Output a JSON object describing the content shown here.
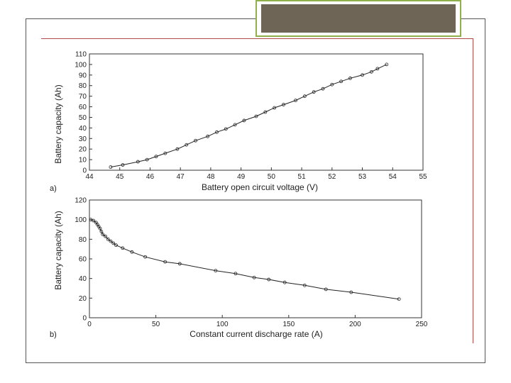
{
  "chart_data": [
    {
      "type": "line",
      "panel_label": "a)",
      "xlabel": "Battery open circuit voltage (V)",
      "ylabel": "Battery capacity (Ah)",
      "xlim": [
        44,
        55
      ],
      "ylim": [
        0,
        110
      ],
      "xticks": [
        44,
        45,
        46,
        47,
        48,
        49,
        50,
        51,
        52,
        53,
        54,
        55
      ],
      "yticks": [
        0,
        10,
        20,
        30,
        40,
        50,
        60,
        70,
        80,
        90,
        100,
        110
      ],
      "grid": false,
      "series": [
        {
          "x": [
            44.7,
            45.1,
            45.6,
            45.9,
            46.2,
            46.5,
            46.9,
            47.2,
            47.5,
            47.9,
            48.2,
            48.5,
            48.8,
            49.1,
            49.5,
            49.8,
            50.1,
            50.4,
            50.8,
            51.1,
            51.4,
            51.7,
            52.0,
            52.3,
            52.6,
            53.0,
            53.3,
            53.5,
            53.8
          ],
          "y": [
            3,
            5,
            8,
            10,
            13,
            16,
            20,
            24,
            28,
            32,
            36,
            39,
            43,
            47,
            51,
            55,
            59,
            62,
            66,
            70,
            74,
            77,
            81,
            84,
            87,
            90,
            93,
            96,
            100
          ]
        }
      ]
    },
    {
      "type": "line",
      "panel_label": "b)",
      "xlabel": "Constant current discharge rate (A)",
      "ylabel": "Battery capacity (Ah)",
      "xlim": [
        0,
        250
      ],
      "ylim": [
        0,
        120
      ],
      "xticks": [
        0,
        50,
        100,
        150,
        200,
        250
      ],
      "yticks": [
        0,
        20,
        40,
        60,
        80,
        100,
        120
      ],
      "grid": false,
      "series": [
        {
          "x": [
            1,
            3,
            5,
            6,
            7,
            8,
            9,
            10,
            12,
            14,
            16,
            18,
            20,
            25,
            32,
            42,
            57,
            68,
            95,
            110,
            124,
            135,
            147,
            162,
            178,
            197,
            233
          ],
          "y": [
            100,
            99,
            97,
            95,
            93,
            91,
            88,
            85,
            83,
            80,
            78,
            76,
            74,
            71,
            67,
            62,
            57,
            55,
            48,
            45,
            41,
            39,
            36,
            33,
            29,
            26,
            19
          ]
        }
      ]
    }
  ]
}
